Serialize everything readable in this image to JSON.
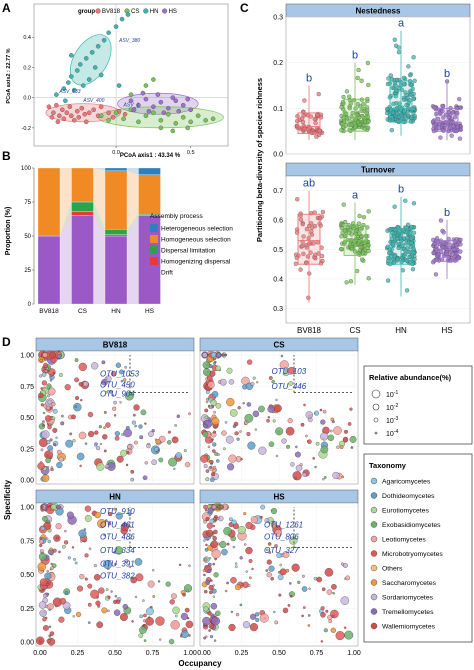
{
  "panel_letters": {
    "a": "A",
    "b": "B",
    "c": "C",
    "d": "D"
  },
  "colors": {
    "BV818": "#e8767a",
    "CS": "#79c25a",
    "HN": "#3fb5b0",
    "HS": "#9d72c9",
    "strip": "#a8c7e6",
    "strip_border": "#555555",
    "Heterogeneous selection": "#2d7fc1",
    "Homogeneous selection": "#f08a24",
    "Dispersal limitation": "#2ca24a",
    "Homogenizing dispersal": "#e8383a",
    "Drift": "#9b59c8",
    "text_blue": "#1f3fa8"
  },
  "chart_data": [
    {
      "id": "A",
      "type": "scatter",
      "xlabel": "PCoA axis1 : 43.34 %",
      "ylabel": "PCoA axis2 : 22.77 %",
      "legend": {
        "title": "group",
        "placement": "top",
        "entries": [
          "BV818",
          "CS",
          "HN",
          "HS"
        ]
      },
      "x_ticks": [
        "0.0",
        "0.5"
      ],
      "y_ticks": [
        "0.4",
        "0.2",
        "0.0",
        "-0.2"
      ],
      "xlim": [
        -0.55,
        0.75
      ],
      "ylim": [
        -0.32,
        0.62
      ],
      "annotations": [
        {
          "text": "ASV_380",
          "x": 0.02,
          "y": 0.37
        },
        {
          "text": "ASV_633",
          "x": -0.38,
          "y": 0.03
        },
        {
          "text": "ASV_400",
          "x": -0.22,
          "y": -0.03
        },
        {
          "text": "ASV_1",
          "x": 0.05,
          "y": -0.06
        }
      ],
      "series": [
        {
          "name": "BV818",
          "points": [
            [
              -0.45,
              -0.06
            ],
            [
              -0.42,
              -0.1
            ],
            [
              -0.4,
              -0.05
            ],
            [
              -0.38,
              -0.12
            ],
            [
              -0.36,
              -0.08
            ],
            [
              -0.35,
              -0.14
            ],
            [
              -0.33,
              -0.1
            ],
            [
              -0.31,
              -0.06
            ],
            [
              -0.3,
              -0.12
            ],
            [
              -0.28,
              -0.15
            ],
            [
              -0.26,
              -0.09
            ],
            [
              -0.25,
              -0.13
            ],
            [
              -0.23,
              -0.07
            ],
            [
              -0.21,
              -0.11
            ],
            [
              -0.2,
              -0.16
            ],
            [
              -0.18,
              -0.1
            ],
            [
              -0.15,
              -0.08
            ],
            [
              -0.12,
              -0.12
            ],
            [
              -0.1,
              -0.06
            ],
            [
              -0.05,
              -0.1
            ],
            [
              -0.02,
              -0.13
            ],
            [
              0.02,
              -0.09
            ],
            [
              0.06,
              -0.11
            ],
            [
              -0.43,
              -0.13
            ],
            [
              -0.39,
              -0.16
            ]
          ]
        },
        {
          "name": "CS",
          "points": [
            [
              -0.1,
              -0.12
            ],
            [
              -0.05,
              -0.15
            ],
            [
              0.0,
              -0.1
            ],
            [
              0.05,
              -0.14
            ],
            [
              0.1,
              -0.08
            ],
            [
              0.15,
              -0.16
            ],
            [
              0.2,
              -0.12
            ],
            [
              0.25,
              -0.1
            ],
            [
              0.3,
              -0.15
            ],
            [
              0.35,
              -0.11
            ],
            [
              0.4,
              -0.17
            ],
            [
              0.45,
              -0.13
            ],
            [
              0.5,
              -0.16
            ],
            [
              0.55,
              -0.12
            ],
            [
              0.6,
              -0.15
            ],
            [
              0.65,
              -0.14
            ],
            [
              0.2,
              0.08
            ],
            [
              0.25,
              0.12
            ],
            [
              0.3,
              -0.2
            ],
            [
              0.38,
              -0.22
            ],
            [
              0.1,
              0.02
            ],
            [
              0.48,
              -0.2
            ]
          ]
        },
        {
          "name": "HN",
          "points": [
            [
              -0.4,
              0.02
            ],
            [
              -0.35,
              0.06
            ],
            [
              -0.32,
              0.1
            ],
            [
              -0.3,
              0.14
            ],
            [
              -0.26,
              0.18
            ],
            [
              -0.24,
              0.22
            ],
            [
              -0.2,
              0.26
            ],
            [
              -0.16,
              0.3
            ],
            [
              -0.12,
              0.34
            ],
            [
              -0.08,
              0.38
            ],
            [
              -0.05,
              0.43
            ],
            [
              0.0,
              0.47
            ],
            [
              0.04,
              0.52
            ],
            [
              0.08,
              0.55
            ],
            [
              -0.28,
              0.05
            ],
            [
              -0.18,
              0.12
            ],
            [
              -0.34,
              -0.02
            ],
            [
              -0.22,
              0.08
            ],
            [
              -0.14,
              0.2
            ],
            [
              -0.3,
              0.28
            ],
            [
              -0.1,
              0.15
            ],
            [
              0.02,
              0.08
            ]
          ]
        },
        {
          "name": "HS",
          "points": [
            [
              0.1,
              -0.02
            ],
            [
              0.15,
              -0.05
            ],
            [
              0.2,
              -0.01
            ],
            [
              0.25,
              -0.06
            ],
            [
              0.3,
              -0.03
            ],
            [
              0.35,
              -0.07
            ],
            [
              0.4,
              -0.02
            ],
            [
              0.45,
              -0.05
            ],
            [
              0.5,
              -0.08
            ],
            [
              0.22,
              -0.09
            ],
            [
              0.32,
              -0.1
            ],
            [
              0.42,
              -0.09
            ],
            [
              0.18,
              0.03
            ],
            [
              0.28,
              0.02
            ],
            [
              0.38,
              0.0
            ],
            [
              0.12,
              -0.08
            ],
            [
              0.48,
              -0.01
            ]
          ]
        }
      ]
    },
    {
      "id": "B",
      "type": "bar",
      "stacked": true,
      "ylabel": "Proportion (%)",
      "y_ticks": [
        "0",
        "25",
        "50",
        "75",
        "100"
      ],
      "ylim": [
        0,
        100
      ],
      "categories": [
        "BV818",
        "CS",
        "HN",
        "HS"
      ],
      "legend": {
        "title": "Assembly process",
        "placement": "right"
      },
      "series": [
        {
          "name": "Drift",
          "values": [
            50,
            65,
            50,
            65
          ]
        },
        {
          "name": "Homogenizing dispersal",
          "values": [
            0,
            3,
            1,
            0
          ]
        },
        {
          "name": "Dispersal limitation",
          "values": [
            0,
            7,
            4,
            1
          ]
        },
        {
          "name": "Homogeneous selection",
          "values": [
            50,
            25,
            43,
            29
          ]
        },
        {
          "name": "Heterogeneous selection",
          "values": [
            0,
            0,
            2,
            5
          ]
        }
      ]
    },
    {
      "id": "C",
      "type": "scatter",
      "ylabel": "Partitioning beta-diversity of species richness",
      "categories": [
        "BV818",
        "CS",
        "HN",
        "HS"
      ],
      "facets": [
        {
          "name": "Nestedness",
          "ylim": [
            0,
            0.3
          ],
          "y_ticks": [
            "0.0",
            "0.1",
            "0.2",
            "0.3"
          ],
          "letters": [
            "b",
            "b",
            "a",
            "b"
          ],
          "box": [
            [
              0.03,
              0.045,
              0.06,
              0.09,
              0.15
            ],
            [
              0.03,
              0.05,
              0.08,
              0.12,
              0.2
            ],
            [
              0.04,
              0.07,
              0.1,
              0.16,
              0.27
            ],
            [
              0.03,
              0.05,
              0.07,
              0.1,
              0.16
            ]
          ]
        },
        {
          "name": "Turnover",
          "ylim": [
            0.25,
            0.75
          ],
          "y_ticks": [
            "0.3",
            "0.4",
            "0.5",
            "0.6",
            "0.7"
          ],
          "letters": [
            "ab",
            "a",
            "b",
            "b"
          ],
          "box": [
            [
              0.32,
              0.45,
              0.53,
              0.62,
              0.7
            ],
            [
              0.38,
              0.48,
              0.53,
              0.58,
              0.66
            ],
            [
              0.34,
              0.45,
              0.52,
              0.57,
              0.68
            ],
            [
              0.4,
              0.46,
              0.5,
              0.53,
              0.6
            ]
          ]
        }
      ]
    },
    {
      "id": "D",
      "type": "scatter",
      "xlabel": "Occupancy",
      "ylabel": "Specificity",
      "x_ticks": [
        "0.00",
        "0.25",
        "0.50",
        "0.75",
        "1.00"
      ],
      "y_ticks": [
        "0.00",
        "0.25",
        "0.50",
        "0.75",
        "1.00"
      ],
      "xlim": [
        0,
        1
      ],
      "ylim": [
        0,
        1
      ],
      "size_legend": {
        "title": "Relative abundance(%)",
        "entries": [
          "10",
          "10",
          "10",
          "10"
        ],
        "exponents": [
          "-1",
          "-2",
          "-3",
          "-4"
        ]
      },
      "taxonomy_legend": {
        "title": "Taxonomy",
        "entries": [
          {
            "name": "Agaricomycetes",
            "color": "#87c5e3"
          },
          {
            "name": "Dothideomycetes",
            "color": "#5e9fc9"
          },
          {
            "name": "Eurotiomycetes",
            "color": "#a9d98e"
          },
          {
            "name": "Exobasidiomycetes",
            "color": "#6bb26a"
          },
          {
            "name": "Leotiomycetes",
            "color": "#f4a3a1"
          },
          {
            "name": "Microbotryomycetes",
            "color": "#e05a5a"
          },
          {
            "name": "Others",
            "color": "#f7c17a"
          },
          {
            "name": "Saccharomycetes",
            "color": "#f29737"
          },
          {
            "name": "Sordariomycetes",
            "color": "#c9b5dc"
          },
          {
            "name": "Tremellomycetes",
            "color": "#8d6bb8"
          },
          {
            "name": "Wallemiomycetes",
            "color": "#d14a4a"
          }
        ]
      },
      "facets": [
        {
          "name": "BV818",
          "labels": [
            "OTU_1053",
            "OTU_450",
            "OTU_904"
          ]
        },
        {
          "name": "CS",
          "labels": [
            "OTU_103",
            "OTU_446"
          ]
        },
        {
          "name": "HN",
          "labels": [
            "OTU_910",
            "OTU_461",
            "OTU_486",
            "OTU_334",
            "OTU_391",
            "OTU_382"
          ]
        },
        {
          "name": "HS",
          "labels": [
            "OTU_1261",
            "OTU_806",
            "OTU_327"
          ]
        }
      ]
    }
  ]
}
